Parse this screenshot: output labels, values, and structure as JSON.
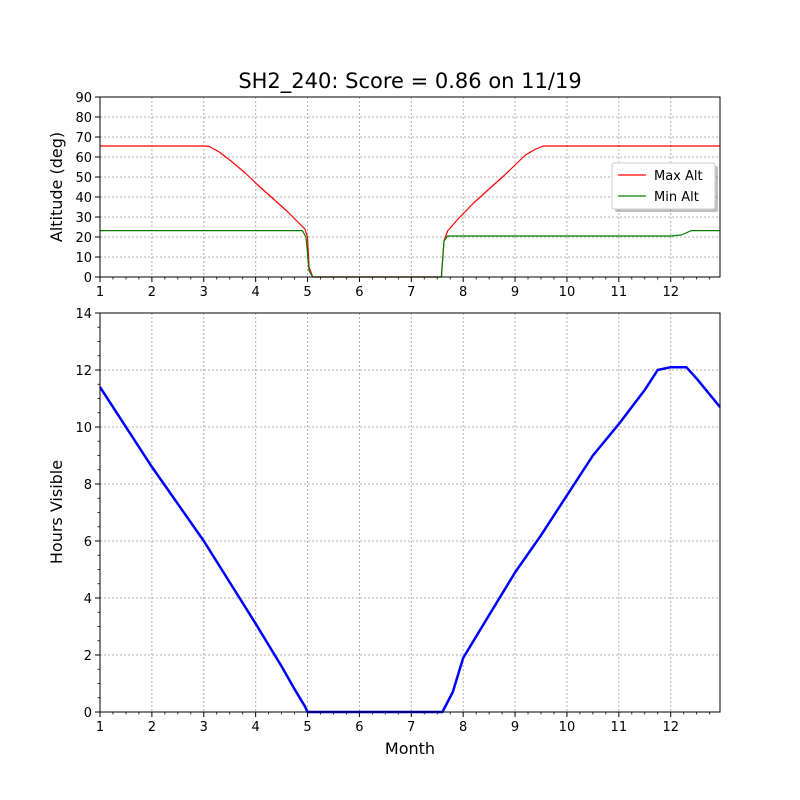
{
  "title": "SH2_240: Score = 0.86 on 11/19",
  "colors": {
    "max_alt": "#ff0000",
    "min_alt": "#008000",
    "hours": "#0000ff",
    "grid": "#b0b0b0"
  },
  "chart_data": [
    {
      "type": "line",
      "title": "SH2_240: Score = 0.86 on 11/19",
      "xlabel": "",
      "ylabel": "Altitude (deg)",
      "xlim": [
        1,
        12.95
      ],
      "ylim": [
        0,
        90
      ],
      "xticks": [
        "1",
        "2",
        "3",
        "4",
        "5",
        "6",
        "7",
        "8",
        "9",
        "10",
        "11",
        "12"
      ],
      "yticks": [
        "0",
        "10",
        "20",
        "30",
        "40",
        "50",
        "60",
        "70",
        "80",
        "90"
      ],
      "grid": true,
      "legend": "center-right",
      "series": [
        {
          "name": "Max Alt",
          "color": "#ff0000",
          "x": [
            1,
            2,
            3,
            3.1,
            3.3,
            3.5,
            3.8,
            4.0,
            4.3,
            4.6,
            4.95,
            5.0,
            5.03,
            5.1,
            6,
            7,
            7.58,
            7.63,
            7.7,
            7.9,
            8.2,
            8.5,
            8.8,
            9.0,
            9.2,
            9.4,
            9.55,
            10,
            11,
            12,
            12.95
          ],
          "y": [
            65.5,
            65.5,
            65.5,
            65.3,
            62.5,
            58.5,
            52,
            47,
            40,
            33,
            24,
            20,
            5,
            0,
            0,
            0,
            0,
            18,
            23,
            29,
            37,
            44,
            51,
            56,
            61,
            64,
            65.5,
            65.5,
            65.5,
            65.5,
            65.5
          ]
        },
        {
          "name": "Min Alt",
          "color": "#008000",
          "x": [
            1,
            2,
            3,
            4,
            4.5,
            4.9,
            4.97,
            5.03,
            5.1,
            6,
            7,
            7.58,
            7.63,
            7.7,
            8,
            9,
            10,
            11,
            12,
            12.2,
            12.4,
            12.95
          ],
          "y": [
            23.2,
            23.2,
            23.2,
            23.2,
            23.2,
            23.2,
            20,
            3,
            0,
            0,
            0,
            0,
            18,
            20.5,
            20.5,
            20.5,
            20.5,
            20.5,
            20.5,
            21,
            23.2,
            23.2
          ]
        }
      ]
    },
    {
      "type": "line",
      "title": "",
      "xlabel": "Month",
      "ylabel": "Hours Visible",
      "xlim": [
        1,
        12.95
      ],
      "ylim": [
        0,
        14
      ],
      "xticks": [
        "1",
        "2",
        "3",
        "4",
        "5",
        "6",
        "7",
        "8",
        "9",
        "10",
        "11",
        "12"
      ],
      "yticks": [
        "0",
        "2",
        "4",
        "6",
        "8",
        "10",
        "12",
        "14"
      ],
      "grid": true,
      "series": [
        {
          "color": "#0000ff",
          "x": [
            1,
            2,
            3,
            4,
            4.5,
            4.75,
            4.95,
            5.0,
            6,
            7,
            7.6,
            7.8,
            8,
            8.5,
            9,
            9.5,
            10,
            10.5,
            11,
            11.5,
            11.75,
            12.0,
            12.3,
            12.5,
            12.95
          ],
          "y": [
            11.4,
            8.6,
            6.0,
            3.1,
            1.6,
            0.8,
            0.2,
            0,
            0,
            0,
            0,
            0.7,
            1.9,
            3.4,
            4.9,
            6.2,
            7.6,
            9.0,
            10.1,
            11.3,
            12.0,
            12.1,
            12.1,
            11.7,
            10.7
          ]
        }
      ]
    }
  ]
}
